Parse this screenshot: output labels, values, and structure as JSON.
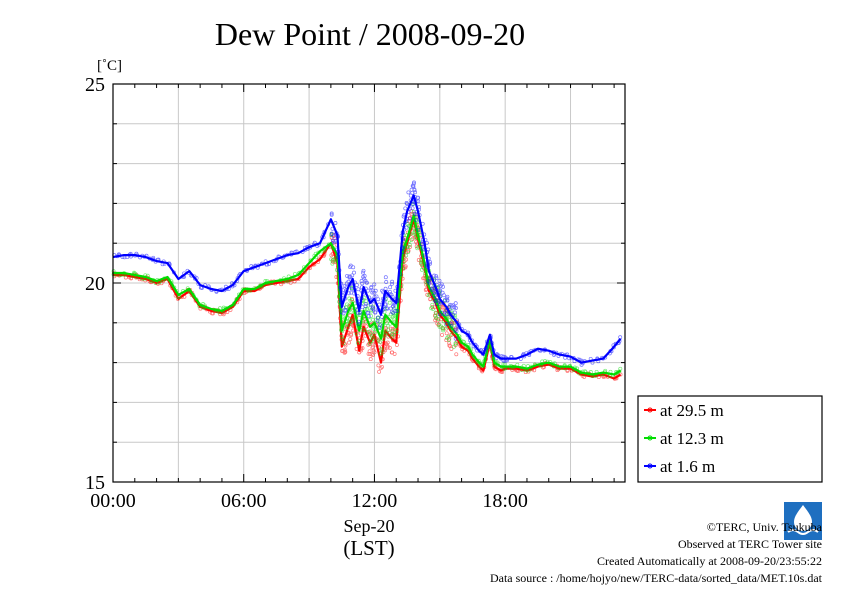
{
  "colors": {
    "series_29_5": "#ff0000",
    "series_12_3": "#00dd00",
    "series_1_6": "#0000ff",
    "grid": "#c8c8c8"
  },
  "chart_data": {
    "type": "line",
    "title": "Dew Point / 2008-09-20",
    "ylabel": "[˚C]",
    "xlabel_date": "Sep-20",
    "xlabel_tz": "(LST)",
    "xlim": [
      0,
      23.5
    ],
    "ylim": [
      15,
      25
    ],
    "yticks": [
      15,
      20,
      25
    ],
    "xticks": [
      {
        "value": 0,
        "label": "00:00"
      },
      {
        "value": 6,
        "label": "06:00"
      },
      {
        "value": 12,
        "label": "12:00"
      },
      {
        "value": 18,
        "label": "18:00"
      }
    ],
    "grid": true,
    "legend_position": "bottom-right",
    "x": [
      0,
      0.5,
      1,
      1.5,
      2,
      2.5,
      3,
      3.5,
      4,
      4.5,
      5,
      5.5,
      6,
      6.5,
      7,
      7.5,
      8,
      8.5,
      9,
      9.5,
      10,
      10.3,
      10.5,
      10.8,
      11,
      11.3,
      11.5,
      11.8,
      12,
      12.3,
      12.5,
      12.8,
      13,
      13.3,
      13.5,
      13.8,
      14,
      14.3,
      14.5,
      14.8,
      15,
      15.3,
      15.5,
      15.8,
      16,
      16.3,
      16.5,
      16.8,
      17,
      17.3,
      17.5,
      17.8,
      18,
      18.5,
      19,
      19.5,
      20,
      20.5,
      21,
      21.5,
      22,
      22.5,
      23,
      23.3
    ],
    "series": [
      {
        "name": "at 29.5 m",
        "color": "series_29_5",
        "values": [
          20.2,
          20.2,
          20.15,
          20.1,
          20.0,
          20.1,
          19.6,
          19.8,
          19.4,
          19.3,
          19.25,
          19.4,
          19.8,
          19.8,
          19.95,
          20.0,
          20.05,
          20.1,
          20.4,
          20.6,
          21.0,
          20.5,
          18.4,
          18.9,
          19.2,
          18.3,
          18.9,
          18.5,
          18.7,
          18.0,
          18.8,
          18.6,
          18.5,
          20.6,
          21.0,
          21.6,
          21.1,
          20.4,
          19.8,
          19.5,
          19.2,
          19.0,
          18.8,
          18.6,
          18.4,
          18.3,
          18.1,
          17.9,
          17.8,
          18.5,
          17.9,
          17.8,
          17.85,
          17.85,
          17.8,
          17.9,
          17.95,
          17.85,
          17.85,
          17.7,
          17.65,
          17.7,
          17.6,
          17.7
        ]
      },
      {
        "name": "at 12.3 m",
        "color": "series_12_3",
        "values": [
          20.25,
          20.25,
          20.2,
          20.15,
          20.05,
          20.15,
          19.7,
          19.85,
          19.45,
          19.35,
          19.3,
          19.45,
          19.85,
          19.85,
          20.0,
          20.05,
          20.1,
          20.2,
          20.5,
          20.8,
          21.0,
          20.7,
          18.8,
          19.3,
          19.5,
          18.8,
          19.3,
          18.9,
          19.0,
          18.6,
          19.2,
          19.0,
          18.9,
          20.8,
          21.1,
          21.7,
          21.2,
          20.5,
          19.9,
          19.6,
          19.3,
          19.1,
          18.9,
          18.7,
          18.5,
          18.4,
          18.2,
          18.0,
          17.9,
          18.6,
          18.0,
          17.9,
          17.9,
          17.9,
          17.85,
          17.95,
          18.0,
          17.9,
          17.9,
          17.75,
          17.7,
          17.75,
          17.7,
          17.8
        ]
      },
      {
        "name": "at 1.6 m",
        "color": "series_1_6",
        "values": [
          20.65,
          20.7,
          20.7,
          20.65,
          20.55,
          20.5,
          20.1,
          20.3,
          19.95,
          19.85,
          19.8,
          19.95,
          20.3,
          20.4,
          20.5,
          20.6,
          20.7,
          20.75,
          20.9,
          21.0,
          21.6,
          21.2,
          19.4,
          19.9,
          20.1,
          19.3,
          19.9,
          19.5,
          19.6,
          19.2,
          19.8,
          19.6,
          19.5,
          21.3,
          21.8,
          22.2,
          21.8,
          21.0,
          20.3,
          19.9,
          19.6,
          19.4,
          19.2,
          19.0,
          18.8,
          18.7,
          18.5,
          18.3,
          18.2,
          18.7,
          18.2,
          18.1,
          18.1,
          18.1,
          18.2,
          18.35,
          18.3,
          18.2,
          18.15,
          18.0,
          18.05,
          18.1,
          18.4,
          18.6
        ]
      }
    ]
  },
  "credits": {
    "copyright": "©TERC, Univ. Tsukuba",
    "observed": "Observed at TERC Tower site",
    "created": "Created Automatically at 2008-09-20/23:55:22",
    "source": "Data source : /home/hojyo/new/TERC-data/sorted_data/MET.10s.dat"
  }
}
